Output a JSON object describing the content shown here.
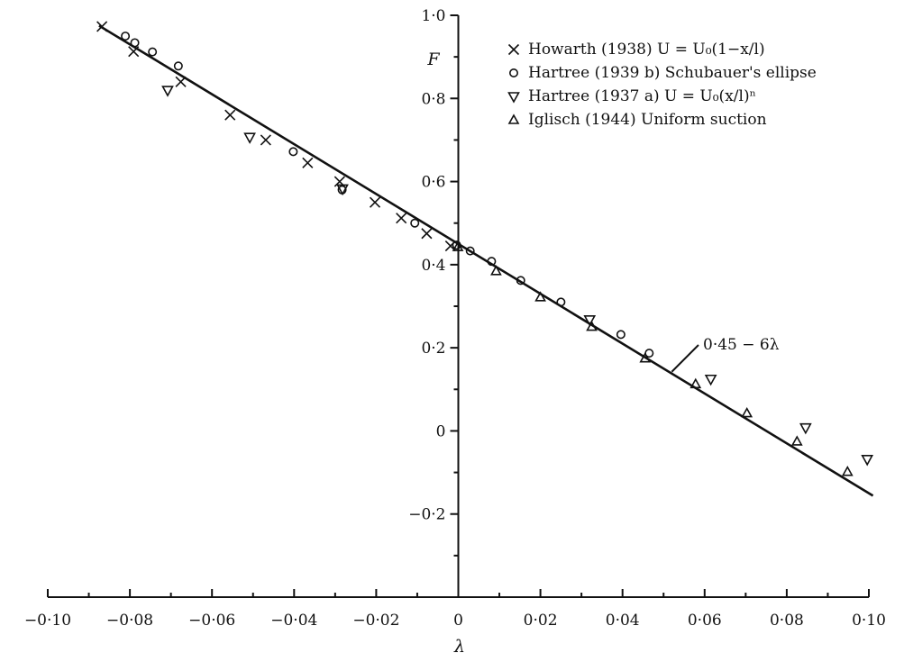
{
  "chart_data": {
    "type": "scatter",
    "title": "",
    "xlabel": "λ",
    "ylabel": "F",
    "xlim": [
      -0.1,
      0.1
    ],
    "ylim": [
      -0.4,
      1.0
    ],
    "grid": false,
    "legend_placement": "top-right",
    "x_tick_labels": [
      {
        "value": -0.1,
        "label": "−0·10"
      },
      {
        "value": -0.08,
        "label": "−0·08"
      },
      {
        "value": -0.06,
        "label": "−0·06"
      },
      {
        "value": -0.04,
        "label": "−0·04"
      },
      {
        "value": -0.02,
        "label": "−0·02"
      },
      {
        "value": 0,
        "label": "0"
      },
      {
        "value": 0.02,
        "label": "0·02"
      },
      {
        "value": 0.04,
        "label": "0·04"
      },
      {
        "value": 0.06,
        "label": "0·06"
      },
      {
        "value": 0.08,
        "label": "0·08"
      },
      {
        "value": 0.1,
        "label": "0·10"
      }
    ],
    "y_tick_labels": [
      {
        "value": 1.0,
        "label": "1·0"
      },
      {
        "value": 0.8,
        "label": "0·8"
      },
      {
        "value": 0.6,
        "label": "0·6"
      },
      {
        "value": 0.4,
        "label": "0·4"
      },
      {
        "value": 0.2,
        "label": "0·2"
      },
      {
        "value": 0,
        "label": "0"
      },
      {
        "value": -0.2,
        "label": "−0·2"
      }
    ],
    "fit_line": {
      "label": "0·45 − 6λ",
      "intercept": 0.45,
      "slope": -6,
      "x_range": [
        -0.0875,
        0.101
      ],
      "label_at_x": 0.052
    },
    "series": [
      {
        "name": "Howarth (1938) U = U₀(1−x/l)",
        "marker": "cross",
        "points": [
          [
            -0.0868,
            0.973
          ],
          [
            -0.0791,
            0.913
          ],
          [
            -0.0676,
            0.84
          ],
          [
            -0.0556,
            0.76
          ],
          [
            -0.0469,
            0.7
          ],
          [
            -0.0367,
            0.645
          ],
          [
            -0.0289,
            0.6
          ],
          [
            -0.0203,
            0.55
          ],
          [
            -0.0139,
            0.512
          ],
          [
            -0.0077,
            0.475
          ],
          [
            -0.0019,
            0.445
          ]
        ]
      },
      {
        "name": "Hartree (1939 b) Schubauer's ellipse",
        "marker": "circle",
        "points": [
          [
            -0.0811,
            0.95
          ],
          [
            -0.0788,
            0.934
          ],
          [
            -0.0745,
            0.912
          ],
          [
            -0.0682,
            0.878
          ],
          [
            -0.0402,
            0.672
          ],
          [
            -0.0283,
            0.58
          ],
          [
            -0.0106,
            0.5
          ],
          [
            -0.0004,
            0.447
          ],
          [
            0.0029,
            0.433
          ],
          [
            0.0081,
            0.408
          ],
          [
            0.0152,
            0.362
          ],
          [
            0.025,
            0.31
          ],
          [
            0.0396,
            0.232
          ],
          [
            0.0465,
            0.187
          ]
        ]
      },
      {
        "name": "Hartree (1937 a) U = U₀(x/l)ⁿ",
        "marker": "triangle-down",
        "points": [
          [
            -0.0708,
            0.82
          ],
          [
            -0.0508,
            0.707
          ],
          [
            -0.0282,
            0.583
          ],
          [
            0.032,
            0.268
          ],
          [
            0.0615,
            0.125
          ],
          [
            0.0846,
            0.008
          ],
          [
            0.0996,
            -0.068
          ]
        ]
      },
      {
        "name": "Iglisch (1944) Uniform suction",
        "marker": "triangle-up",
        "points": [
          [
            -0.0001,
            0.443
          ],
          [
            0.0092,
            0.385
          ],
          [
            0.02,
            0.322
          ],
          [
            0.0325,
            0.251
          ],
          [
            0.0455,
            0.175
          ],
          [
            0.0578,
            0.113
          ],
          [
            0.0703,
            0.043
          ],
          [
            0.0825,
            -0.025
          ],
          [
            0.0948,
            -0.098
          ]
        ]
      }
    ],
    "legend_entries": [
      {
        "symbol": "×",
        "text": "Howarth (1938) U = U₀(1−x/l)"
      },
      {
        "symbol": "○",
        "text": "Hartree (1939 b) Schubauer's ellipse"
      },
      {
        "symbol": "▽",
        "text": "Hartree (1937 a) U = U₀(x/l)ⁿ"
      },
      {
        "symbol": "△",
        "text": "Iglisch (1944) Uniform suction"
      }
    ]
  }
}
